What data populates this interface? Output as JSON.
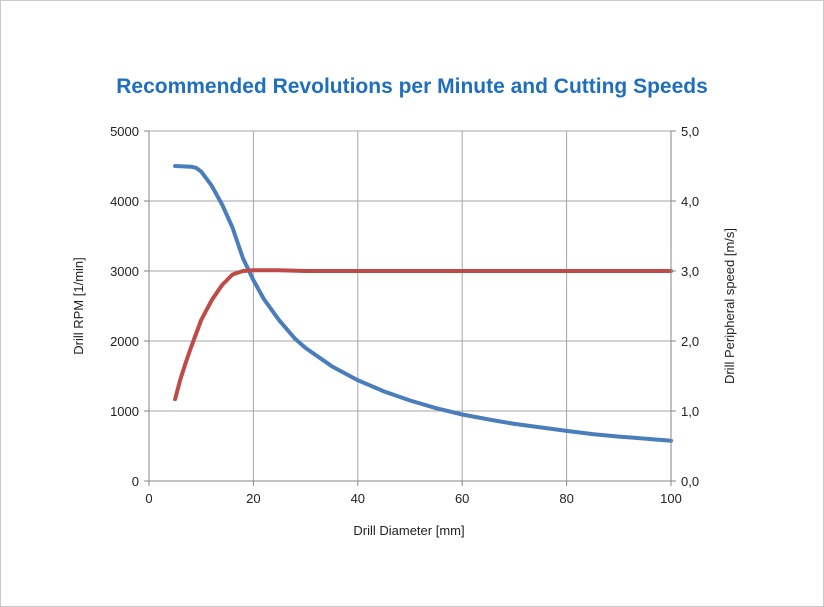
{
  "chart_data": {
    "type": "line",
    "title": "Recommended Revolutions per Minute and Cutting Speeds",
    "xlabel": "Drill Diameter [mm]",
    "ylabel": "Drill RPM [1/min]",
    "y2label": "Drill Peripheral speed [m/s]",
    "xlim": [
      0,
      100
    ],
    "ylim": [
      0,
      5000
    ],
    "y2lim": [
      0,
      5
    ],
    "x_ticks": [
      "0",
      "20",
      "40",
      "60",
      "80",
      "100"
    ],
    "y_ticks": [
      "0",
      "1000",
      "2000",
      "3000",
      "4000",
      "5000"
    ],
    "y2_ticks": [
      "0,0",
      "1,0",
      "2,0",
      "3,0",
      "4,0",
      "5,0"
    ],
    "grid": true,
    "legend": "none",
    "series": [
      {
        "axis": "left",
        "color": "#4a7ebb",
        "x": [
          5,
          6,
          8,
          9,
          10,
          12,
          14,
          16,
          18,
          20,
          22,
          25,
          28,
          30,
          35,
          40,
          45,
          50,
          55,
          60,
          65,
          70,
          75,
          80,
          85,
          90,
          95,
          100
        ],
        "y": [
          4500,
          4495,
          4490,
          4475,
          4420,
          4220,
          3950,
          3620,
          3180,
          2870,
          2600,
          2290,
          2030,
          1900,
          1640,
          1440,
          1280,
          1150,
          1040,
          950,
          880,
          815,
          765,
          715,
          670,
          635,
          605,
          575
        ]
      },
      {
        "axis": "right",
        "color": "#be4b48",
        "x": [
          5,
          6,
          7,
          8,
          9,
          10,
          12,
          14,
          16,
          18,
          20,
          25,
          30,
          40,
          60,
          80,
          100
        ],
        "y": [
          1.17,
          1.45,
          1.68,
          1.9,
          2.1,
          2.3,
          2.58,
          2.8,
          2.95,
          3.0,
          3.01,
          3.01,
          3.0,
          3.0,
          3.0,
          3.0,
          3.0
        ]
      }
    ]
  }
}
